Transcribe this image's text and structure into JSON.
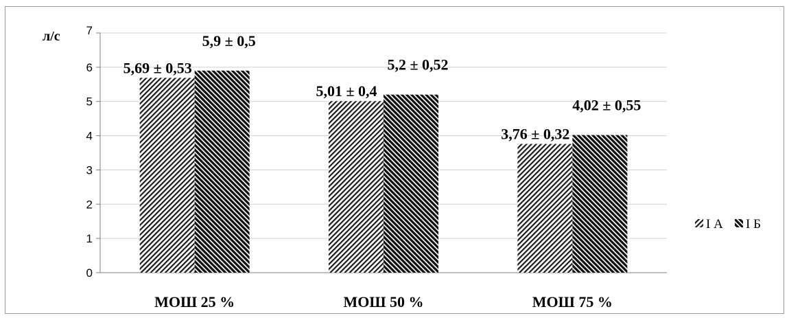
{
  "chart_data": {
    "type": "bar",
    "categories": [
      "МОШ 25 %",
      "МОШ 50 %",
      "МОШ 75 %"
    ],
    "series": [
      {
        "name": "I А",
        "values": [
          5.69,
          5.01,
          3.76
        ],
        "labels": [
          "5,69 ± 0,53",
          "5,01 ± 0,4",
          "3,76 ± 0,32"
        ],
        "pattern": "diagonal-light"
      },
      {
        "name": "I Б",
        "values": [
          5.9,
          5.2,
          4.02
        ],
        "labels": [
          "5,9 ± 0,5",
          "5,2 ± 0,52",
          "4,02 ± 0,55"
        ],
        "pattern": "diagonal-dark"
      }
    ],
    "yunit": "л/с",
    "ylim": [
      0,
      7
    ],
    "yticks": [
      "0",
      "1",
      "2",
      "3",
      "4",
      "5",
      "6",
      "7"
    ],
    "grid": true,
    "legend_position": "right"
  }
}
